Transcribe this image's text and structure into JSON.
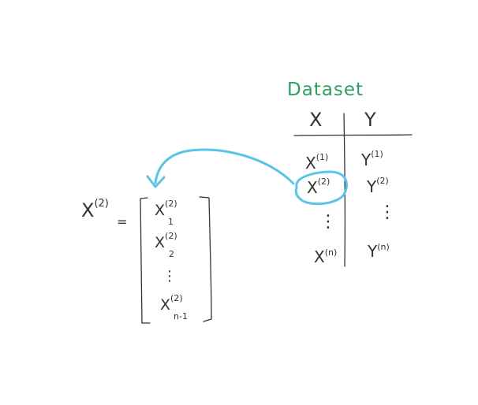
{
  "colors": {
    "ink": "#333333",
    "title_green": "#2e9e62",
    "highlight_blue": "#5bc4e6"
  },
  "dataset": {
    "title": "Dataset",
    "header_x": "X",
    "header_y": "Y",
    "rows": [
      {
        "x_base": "X",
        "x_sup": "(1)",
        "y_base": "Y",
        "y_sup": "(1)"
      },
      {
        "x_base": "X",
        "x_sup": "(2)",
        "y_base": "Y",
        "y_sup": "(2)"
      },
      {
        "x_base": "X",
        "x_sup": "(n)",
        "y_base": "Y",
        "y_sup": "(n)"
      }
    ],
    "dots": "⋮"
  },
  "vector": {
    "lhs_base": "X",
    "lhs_sup": "(2)",
    "equals": "=",
    "entries": [
      {
        "base": "X",
        "sup": "(2)",
        "sub": "1"
      },
      {
        "base": "X",
        "sup": "(2)",
        "sub": "2"
      },
      {
        "base": "X",
        "sup": "(2)",
        "sub": "n-1"
      }
    ],
    "dots": "⋮"
  }
}
